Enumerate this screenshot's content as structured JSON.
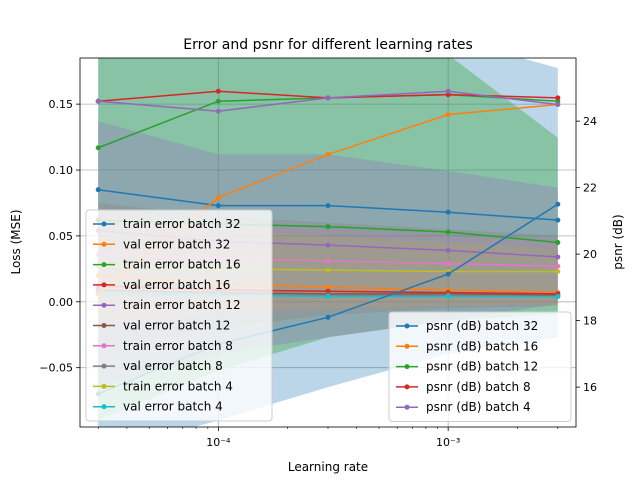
{
  "chart_data": {
    "type": "line",
    "title": "Error and psnr for different learning rates",
    "xlabel": "Learning rate",
    "ylabel_left": "Loss (MSE)",
    "ylabel_right": "psnr (dB)",
    "x_scale": "log",
    "x": [
      3e-05,
      0.0001,
      0.0003,
      0.001,
      0.003
    ],
    "x_ticks": [
      {
        "value": 0.0001,
        "label": "10⁻⁴"
      },
      {
        "value": 0.001,
        "label": "10⁻³"
      }
    ],
    "xlim": [
      2.5e-05,
      0.0036
    ],
    "ylim_left": [
      -0.095,
      0.185
    ],
    "ylim_right": [
      14.8,
      25.9
    ],
    "yticks_left": [
      -0.05,
      0.0,
      0.05,
      0.1,
      0.15
    ],
    "yticks_left_labels": [
      "−0.05",
      "0.00",
      "0.05",
      "0.10",
      "0.15"
    ],
    "yticks_right": [
      16,
      18,
      20,
      22,
      24
    ],
    "yticks_right_labels": [
      "16",
      "18",
      "20",
      "22",
      "24"
    ],
    "grid": true,
    "bands": [
      {
        "axis": "right",
        "color": "#1f77b4",
        "opacity": 0.3,
        "lower": [
          14.0,
          15.0,
          16.0,
          17.0,
          17.5
        ],
        "upper": [
          26.5,
          26.5,
          26.5,
          26.5,
          25.6
        ]
      },
      {
        "axis": "right",
        "color": "#2ca02c",
        "opacity": 0.35,
        "lower": [
          15.0,
          16.5,
          17.5,
          18.0,
          18.2
        ],
        "upper": [
          26.5,
          26.5,
          26.5,
          26.0,
          23.5
        ]
      },
      {
        "axis": "right",
        "color": "#9467bd",
        "opacity": 0.3,
        "lower": [
          16.0,
          17.0,
          17.5,
          18.0,
          18.5
        ],
        "upper": [
          24.0,
          23.0,
          23.0,
          22.5,
          22.0
        ]
      },
      {
        "axis": "left",
        "color": "#8c564b",
        "opacity": 0.15,
        "lower": [
          -0.035,
          -0.02,
          -0.01,
          -0.005,
          -0.003
        ],
        "upper": [
          0.075,
          0.065,
          0.06,
          0.055,
          0.05
        ]
      },
      {
        "axis": "left",
        "color": "#e377c2",
        "opacity": 0.15,
        "lower": [
          -0.02,
          -0.01,
          -0.005,
          -0.003,
          -0.002
        ],
        "upper": [
          0.07,
          0.06,
          0.055,
          0.05,
          0.045
        ]
      },
      {
        "axis": "left",
        "color": "#bcbd22",
        "opacity": 0.15,
        "lower": [
          -0.015,
          -0.008,
          -0.005,
          -0.003,
          -0.002
        ],
        "upper": [
          0.065,
          0.055,
          0.05,
          0.045,
          0.04
        ]
      }
    ],
    "left_series": [
      {
        "name": "train error batch 32",
        "color": "#1f77b4",
        "values": [
          0.085,
          0.073,
          0.073,
          0.068,
          0.062
        ]
      },
      {
        "name": "val error batch 32",
        "color": "#ff7f0e",
        "values": [
          0.02,
          0.014,
          0.011,
          0.009,
          0.007
        ]
      },
      {
        "name": "train error batch 16",
        "color": "#2ca02c",
        "values": [
          0.062,
          0.059,
          0.057,
          0.053,
          0.045
        ]
      },
      {
        "name": "val error batch 16",
        "color": "#d62728",
        "values": [
          0.012,
          0.009,
          0.008,
          0.007,
          0.006
        ]
      },
      {
        "name": "train error batch 12",
        "color": "#9467bd",
        "values": [
          0.054,
          0.046,
          0.043,
          0.039,
          0.034
        ]
      },
      {
        "name": "val error batch 12",
        "color": "#8c564b",
        "values": [
          0.009,
          0.007,
          0.006,
          0.006,
          0.005
        ]
      },
      {
        "name": "train error batch 8",
        "color": "#e377c2",
        "values": [
          0.036,
          0.033,
          0.031,
          0.029,
          0.027
        ]
      },
      {
        "name": "val error batch 8",
        "color": "#7f7f7f",
        "values": [
          0.008,
          0.006,
          0.005,
          0.005,
          0.004
        ]
      },
      {
        "name": "train error batch 4",
        "color": "#bcbd22",
        "values": [
          0.027,
          0.025,
          0.024,
          0.023,
          0.023
        ]
      },
      {
        "name": "val error batch 4",
        "color": "#17becf",
        "values": [
          0.006,
          0.005,
          0.004,
          0.004,
          0.004
        ]
      }
    ],
    "right_series": [
      {
        "name": "psnr (dB) batch 32",
        "color": "#1f77b4",
        "values": [
          15.8,
          17.3,
          18.1,
          19.4,
          21.5
        ]
      },
      {
        "name": "psnr (dB) batch 16",
        "color": "#ff7f0e",
        "values": [
          18.8,
          21.7,
          23.0,
          24.2,
          24.5
        ]
      },
      {
        "name": "psnr (dB) batch 12",
        "color": "#2ca02c",
        "values": [
          23.2,
          24.6,
          24.7,
          24.8,
          24.6
        ]
      },
      {
        "name": "psnr (dB) batch 8",
        "color": "#d62728",
        "values": [
          24.6,
          24.9,
          24.7,
          24.8,
          24.7
        ]
      },
      {
        "name": "psnr (dB) batch 4",
        "color": "#9467bd",
        "values": [
          24.6,
          24.3,
          24.7,
          24.9,
          24.5
        ]
      }
    ],
    "legend_left_placement": "lower-left",
    "legend_right_placement": "lower-right"
  }
}
